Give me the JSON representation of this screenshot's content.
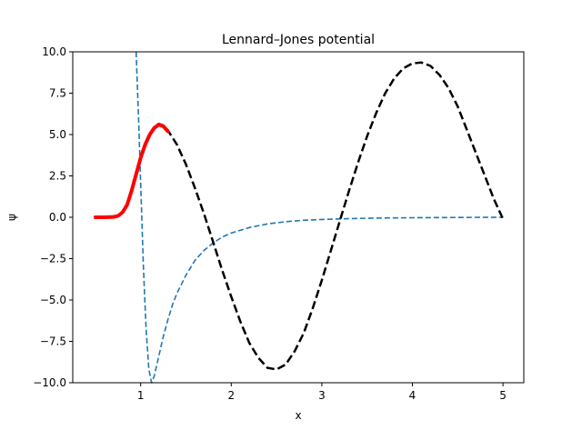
{
  "chart_data": {
    "type": "line",
    "title": "Lennard–Jones potential",
    "xlabel": "x",
    "ylabel": "ψ",
    "xlim": [
      0.25,
      5.23
    ],
    "ylim": [
      -10,
      10
    ],
    "grid": false,
    "x_ticks": [
      {
        "value": 1,
        "label": "1"
      },
      {
        "value": 2,
        "label": "2"
      },
      {
        "value": 3,
        "label": "3"
      },
      {
        "value": 4,
        "label": "4"
      },
      {
        "value": 5,
        "label": "5"
      }
    ],
    "y_ticks": [
      {
        "value": -10,
        "label": "−10.0"
      },
      {
        "value": -7.5,
        "label": "−7.5"
      },
      {
        "value": -5,
        "label": "−5.0"
      },
      {
        "value": -2.5,
        "label": "−2.5"
      },
      {
        "value": 0,
        "label": "0.0"
      },
      {
        "value": 2.5,
        "label": "2.5"
      },
      {
        "value": 5,
        "label": "5.0"
      },
      {
        "value": 7.5,
        "label": "7.5"
      },
      {
        "value": 10,
        "label": "10.0"
      }
    ],
    "series": [
      {
        "style": "dashed",
        "color": "#1f77b4",
        "points": [
          [
            0.95,
            10.0
          ],
          [
            0.98,
            5.5
          ],
          [
            1.0,
            2.0
          ],
          [
            1.03,
            -3.0
          ],
          [
            1.06,
            -6.8
          ],
          [
            1.09,
            -9.2
          ],
          [
            1.12,
            -10.0
          ],
          [
            1.15,
            -9.6
          ],
          [
            1.2,
            -8.4
          ],
          [
            1.25,
            -7.2
          ],
          [
            1.3,
            -6.2
          ],
          [
            1.35,
            -5.3
          ],
          [
            1.4,
            -4.6
          ],
          [
            1.5,
            -3.5
          ],
          [
            1.6,
            -2.6
          ],
          [
            1.7,
            -2.0
          ],
          [
            1.8,
            -1.55
          ],
          [
            1.9,
            -1.2
          ],
          [
            2.0,
            -0.95
          ],
          [
            2.2,
            -0.62
          ],
          [
            2.4,
            -0.4
          ],
          [
            2.6,
            -0.27
          ],
          [
            2.8,
            -0.18
          ],
          [
            3.0,
            -0.13
          ],
          [
            3.3,
            -0.08
          ],
          [
            3.6,
            -0.05
          ],
          [
            4.0,
            -0.03
          ],
          [
            4.5,
            -0.01
          ],
          [
            5.0,
            0.0
          ]
        ]
      },
      {
        "style": "dashed",
        "color": "#000000",
        "points": [
          [
            0.93,
            2.3
          ],
          [
            0.97,
            3.0
          ],
          [
            1.0,
            3.5
          ],
          [
            1.05,
            4.3
          ],
          [
            1.1,
            5.0
          ],
          [
            1.15,
            5.45
          ],
          [
            1.2,
            5.65
          ],
          [
            1.25,
            5.55
          ],
          [
            1.3,
            5.25
          ],
          [
            1.4,
            4.4
          ],
          [
            1.5,
            3.2
          ],
          [
            1.6,
            1.75
          ],
          [
            1.7,
            0.2
          ],
          [
            1.8,
            -1.5
          ],
          [
            1.9,
            -3.2
          ],
          [
            2.0,
            -4.8
          ],
          [
            2.1,
            -6.3
          ],
          [
            2.2,
            -7.6
          ],
          [
            2.3,
            -8.5
          ],
          [
            2.4,
            -9.1
          ],
          [
            2.5,
            -9.2
          ],
          [
            2.6,
            -8.9
          ],
          [
            2.7,
            -8.1
          ],
          [
            2.8,
            -7.0
          ],
          [
            2.9,
            -5.5
          ],
          [
            3.0,
            -3.8
          ],
          [
            3.1,
            -2.0
          ],
          [
            3.2,
            -0.2
          ],
          [
            3.3,
            1.6
          ],
          [
            3.4,
            3.3
          ],
          [
            3.5,
            4.9
          ],
          [
            3.6,
            6.3
          ],
          [
            3.7,
            7.5
          ],
          [
            3.8,
            8.4
          ],
          [
            3.9,
            9.0
          ],
          [
            4.0,
            9.3
          ],
          [
            4.1,
            9.35
          ],
          [
            4.2,
            9.15
          ],
          [
            4.3,
            8.6
          ],
          [
            4.4,
            7.8
          ],
          [
            4.5,
            6.7
          ],
          [
            4.6,
            5.3
          ],
          [
            4.7,
            3.9
          ],
          [
            4.8,
            2.5
          ],
          [
            4.9,
            1.1
          ],
          [
            5.0,
            -0.1
          ]
        ]
      },
      {
        "style": "solid",
        "color": "#ff0000",
        "points": [
          [
            0.5,
            0.0
          ],
          [
            0.6,
            0.0
          ],
          [
            0.7,
            0.02
          ],
          [
            0.75,
            0.08
          ],
          [
            0.8,
            0.3
          ],
          [
            0.85,
            0.75
          ],
          [
            0.9,
            1.6
          ],
          [
            0.95,
            2.6
          ],
          [
            1.0,
            3.6
          ],
          [
            1.05,
            4.4
          ],
          [
            1.1,
            5.0
          ],
          [
            1.15,
            5.4
          ],
          [
            1.2,
            5.6
          ],
          [
            1.25,
            5.5
          ],
          [
            1.3,
            5.2
          ]
        ]
      }
    ]
  }
}
